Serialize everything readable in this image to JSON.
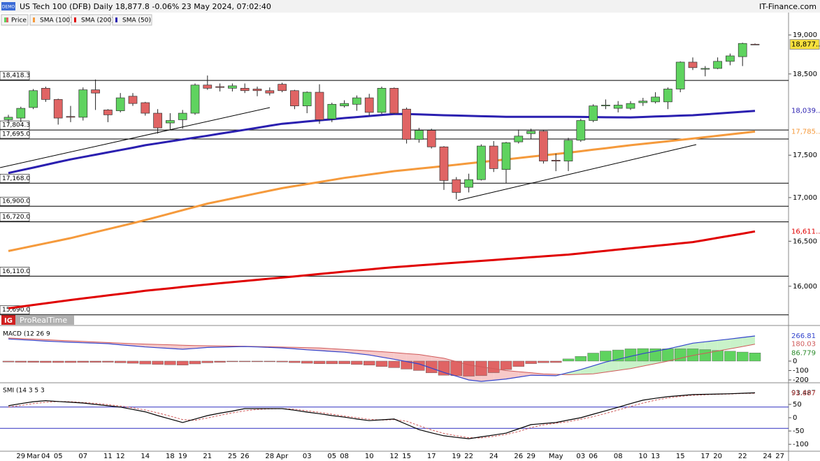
{
  "header": {
    "title": "US Tech 100 (DFB) Daily 18,877.8 -0.06% 23 May 2024, 07:02:40",
    "brand": "IT-Finance.com",
    "badge": "DEMO",
    "logo_ig": "IG",
    "logo": "ProRealTime"
  },
  "chart_data": [
    {
      "type": "candlestick",
      "price_name": "Price",
      "log": true,
      "categories": [
        null,
        "29",
        "Mar",
        "04",
        "05",
        null,
        "07",
        null,
        "11",
        "12",
        null,
        "14",
        null,
        "18",
        "19",
        null,
        "21",
        null,
        "25",
        "26",
        null,
        "28",
        "Apr",
        null,
        "03",
        null,
        "05",
        "08",
        null,
        "10",
        null,
        "12",
        "15",
        null,
        "17",
        null,
        "19",
        "22",
        null,
        "24",
        null,
        "26",
        "29",
        null,
        "May",
        null,
        "03",
        "06",
        null,
        "08",
        null,
        "10",
        "13",
        null,
        "15",
        null,
        "17",
        "20",
        null,
        "22",
        null,
        "24",
        "27"
      ],
      "open": [
        17930,
        17950,
        18080,
        18320,
        18180,
        17970,
        17960,
        18300,
        18050,
        18040,
        18220,
        18140,
        18010,
        17890,
        17930,
        18010,
        18360,
        18340,
        18320,
        18320,
        18310,
        18290,
        18370,
        18290,
        18100,
        18270,
        17940,
        18100,
        18120,
        18200,
        18020,
        18320,
        18060,
        17690,
        17800,
        17600,
        17210,
        17120,
        17210,
        17610,
        17330,
        17660,
        17760,
        17790,
        17440,
        17430,
        17680,
        17920,
        18100,
        18070,
        18070,
        18140,
        18150,
        18150,
        18310,
        18650,
        18560,
        18570,
        18660,
        18720,
        18880,
        null,
        null
      ],
      "high": [
        17990,
        18090,
        18310,
        18340,
        18190,
        18100,
        18330,
        18430,
        18060,
        18260,
        18260,
        18150,
        18060,
        18010,
        18050,
        18380,
        18480,
        18380,
        18380,
        18380,
        18340,
        18330,
        18390,
        18300,
        18280,
        18370,
        18140,
        18170,
        18230,
        18250,
        18340,
        18330,
        18080,
        17830,
        17820,
        17610,
        17240,
        17280,
        17630,
        17670,
        17660,
        17810,
        17820,
        17800,
        17520,
        17710,
        17940,
        18120,
        18180,
        18160,
        18160,
        18200,
        18270,
        18330,
        18660,
        18710,
        18600,
        18710,
        18760,
        18900,
        18890,
        null,
        null
      ],
      "low": [
        17900,
        17900,
        18060,
        18150,
        17870,
        17900,
        17920,
        18050,
        17900,
        18020,
        18100,
        17980,
        17760,
        17800,
        17820,
        17990,
        18300,
        18280,
        18280,
        18260,
        18220,
        18230,
        18270,
        18060,
        18010,
        17880,
        17900,
        18080,
        18040,
        17980,
        18000,
        18000,
        17640,
        17650,
        17580,
        17090,
        16980,
        17060,
        17200,
        17300,
        17170,
        17640,
        17700,
        17400,
        17310,
        17310,
        17660,
        17900,
        18060,
        18020,
        18050,
        18100,
        18130,
        18060,
        18270,
        18550,
        18470,
        18560,
        18610,
        18600,
        18870,
        null,
        null
      ],
      "close": [
        17960,
        18070,
        18290,
        18180,
        17950,
        17960,
        18300,
        18260,
        17990,
        18200,
        18130,
        18010,
        17830,
        17920,
        18010,
        18360,
        18320,
        18330,
        18350,
        18290,
        18290,
        18260,
        18290,
        18100,
        18270,
        17930,
        18120,
        18130,
        18200,
        18020,
        18320,
        18010,
        17690,
        17800,
        17600,
        17200,
        17060,
        17210,
        17610,
        17340,
        17650,
        17730,
        17790,
        17430,
        17430,
        17680,
        17920,
        18100,
        18110,
        18110,
        18130,
        18160,
        18210,
        18310,
        18650,
        18580,
        18570,
        18660,
        18730,
        18890,
        18877.8,
        null,
        null
      ],
      "last_label": "18,877...",
      "up_color": "#5fd35f",
      "down_color": "#e06464",
      "series": [
        {
          "name": "SMA (100)",
          "color": "#f59a3c",
          "last_label": "17,785...",
          "values": [
            16390,
            16419,
            16448,
            16477,
            16506,
            16535,
            16569,
            16603,
            16637,
            16671,
            16705,
            16740,
            16778,
            16816,
            16854,
            16892,
            16930,
            16960,
            16990,
            17020,
            17050,
            17080,
            17110,
            17134,
            17158,
            17182,
            17206,
            17230,
            17250,
            17270,
            17290,
            17310,
            17325,
            17340,
            17355,
            17370,
            17386,
            17402,
            17418,
            17434,
            17450,
            17466,
            17482,
            17498,
            17514,
            17530,
            17548,
            17566,
            17584,
            17602,
            17620,
            17636,
            17652,
            17668,
            17684,
            17700,
            17717,
            17734,
            17751,
            17768,
            17785,
            null,
            null
          ]
        },
        {
          "name": "SMA (200)",
          "color": "#e00000",
          "last_label": "16,611...",
          "values": [
            15760,
            15778,
            15796,
            15814,
            15832,
            15850,
            15867,
            15883,
            15900,
            15917,
            15933,
            15950,
            15964,
            15978,
            15992,
            16006,
            16020,
            16033,
            16045,
            16058,
            16070,
            16083,
            16095,
            16108,
            16121,
            16134,
            16147,
            16160,
            16173,
            16185,
            16198,
            16210,
            16220,
            16230,
            16240,
            16250,
            16260,
            16270,
            16280,
            16290,
            16300,
            16310,
            16320,
            16330,
            16340,
            16350,
            16364,
            16378,
            16392,
            16406,
            16420,
            16434,
            16448,
            16462,
            16476,
            16490,
            16514,
            16538,
            16562,
            16586,
            16611,
            null,
            null
          ]
        },
        {
          "name": "SMA (50)",
          "color": "#2a1fb0",
          "last_label": "18,039...",
          "values": [
            17288,
            17320,
            17352,
            17385,
            17418,
            17450,
            17478,
            17506,
            17534,
            17562,
            17590,
            17620,
            17643,
            17666,
            17689,
            17712,
            17735,
            17759,
            17783,
            17807,
            17831,
            17856,
            17880,
            17894,
            17908,
            17922,
            17936,
            17950,
            17962,
            17975,
            17988,
            18000,
            18000,
            17995,
            17990,
            17985,
            17981,
            17977,
            17973,
            17970,
            17966,
            17966,
            17966,
            17966,
            17966,
            17966,
            17964,
            17962,
            17960,
            17959,
            17958,
            17963,
            17969,
            17974,
            17980,
            17985,
            17995,
            18006,
            18017,
            18028,
            18039,
            null,
            null
          ]
        }
      ],
      "ylim": [
        15576,
        19293
      ],
      "yticks": [
        {
          "value": 16000,
          "label": "16,000"
        },
        {
          "value": 16500,
          "label": "16,500"
        },
        {
          "value": 17000,
          "label": "17,000"
        },
        {
          "value": 17500,
          "label": "17,500"
        },
        {
          "value": 18500,
          "label": "18,500"
        },
        {
          "value": 19000,
          "label": "19,000"
        }
      ],
      "levels": [
        {
          "value": 18418.3,
          "label": "18,418.3"
        },
        {
          "value": 17804.3,
          "label": "17,804.3"
        },
        {
          "value": 17695,
          "label": "17,695.0"
        },
        {
          "value": 17168,
          "label": "17,168.0"
        },
        {
          "value": 16900,
          "label": "16,900.0"
        },
        {
          "value": 16720,
          "label": "16,720.0"
        },
        {
          "value": 16110,
          "label": "16,110.0"
        },
        {
          "value": 15690,
          "label": "15,690.0"
        }
      ]
    },
    {
      "type": "macd",
      "title": "MACD (12 26 9",
      "macd": {
        "color": "#3344cc",
        "last_label": "266.81",
        "values": [
          235,
          227,
          220,
          212,
          206,
          200,
          195,
          190,
          185,
          173,
          162,
          150,
          142,
          134,
          126,
          135,
          145,
          148,
          152,
          155,
          150,
          145,
          140,
          130,
          120,
          112,
          103,
          95,
          80,
          65,
          42,
          20,
          -5,
          -30,
          -75,
          -120,
          -160,
          -200,
          -215,
          -203,
          -190,
          -170,
          -150,
          -152,
          -155,
          -122,
          -90,
          -50,
          -10,
          20,
          50,
          80,
          105,
          130,
          160,
          190,
          205,
          220,
          235,
          251,
          266.81,
          null,
          null
        ]
      },
      "signal": {
        "color": "#d05a5a",
        "last_label": "180.03",
        "values": [
          245,
          239,
          233,
          227,
          221,
          215,
          209,
          203,
          197,
          191,
          185,
          181,
          177,
          173,
          169,
          165,
          163,
          161,
          159,
          157,
          155,
          152,
          149,
          146,
          143,
          140,
          132,
          124,
          116,
          108,
          100,
          90,
          80,
          70,
          50,
          30,
          -5,
          -40,
          -60,
          -80,
          -100,
          -112,
          -123,
          -135,
          -140,
          -145,
          -140,
          -135,
          -117,
          -98,
          -80,
          -53,
          -27,
          0,
          30,
          60,
          83,
          107,
          130,
          155,
          180.03,
          null,
          null
        ]
      },
      "histogram": {
        "up_color": "#5fd35f",
        "down_color": "#e06464",
        "last_label": "86.779",
        "values": [
          -10,
          -12,
          -13,
          -15,
          -15,
          -15,
          -14,
          -13,
          -12,
          -18,
          -23,
          -31,
          -35,
          -39,
          -43,
          -30,
          -18,
          -13,
          -7,
          -2,
          -5,
          -7,
          -9,
          -16,
          -23,
          -28,
          -29,
          -29,
          -36,
          -43,
          -58,
          -70,
          -85,
          -100,
          -125,
          -150,
          -155,
          -160,
          -155,
          -123,
          -90,
          -58,
          -27,
          -17,
          -15,
          23,
          50,
          85,
          107,
          118,
          130,
          133,
          132,
          130,
          130,
          130,
          122,
          113,
          105,
          96,
          86.779,
          null,
          null
        ]
      },
      "fill_up": "#c9f2c9",
      "fill_down": "#f7c9c9",
      "ylim": [
        -230,
        363
      ],
      "yticks": [
        0,
        -100,
        -200
      ]
    },
    {
      "type": "smi",
      "title": "SMI (14 3 5 3",
      "smi": {
        "color": "#000000",
        "last_label": "93.487",
        "values": [
          45,
          53,
          60,
          64,
          61,
          58,
          55,
          50,
          45,
          40,
          31,
          22,
          8,
          -5,
          -18,
          -5,
          8,
          17,
          25,
          34,
          34,
          34,
          34,
          28,
          21,
          15,
          8,
          2,
          -5,
          -11,
          -8,
          -5,
          -25,
          -45,
          -57,
          -68,
          -74,
          -79,
          -72,
          -65,
          -58,
          -42,
          -26,
          -22,
          -18,
          -9,
          0,
          13,
          26,
          39,
          53,
          66,
          73,
          79,
          83,
          87,
          88,
          89,
          90,
          92,
          93.487,
          null,
          null
        ]
      },
      "signal": {
        "color": "#d05a5a",
        "last_label": "91.897",
        "values": [
          40,
          46,
          53,
          58,
          61,
          60,
          57,
          54,
          49,
          44,
          37,
          29,
          18,
          6,
          -7,
          -10,
          -1,
          9,
          18,
          26,
          31,
          33,
          34,
          32,
          26,
          20,
          13,
          6,
          0,
          -6,
          -9,
          -7,
          -13,
          -30,
          -46,
          -59,
          -68,
          -75,
          -76,
          -70,
          -63,
          -52,
          -37,
          -27,
          -21,
          -15,
          -6,
          4,
          16,
          29,
          42,
          55,
          66,
          74,
          80,
          84,
          86,
          88,
          89,
          91,
          91.897,
          null,
          null
        ]
      },
      "levels": [
        40,
        -40
      ],
      "level_color": "#3030c0",
      "ylim": [
        -126,
        126
      ],
      "yticks": [
        50,
        0,
        -50,
        -100
      ]
    }
  ]
}
